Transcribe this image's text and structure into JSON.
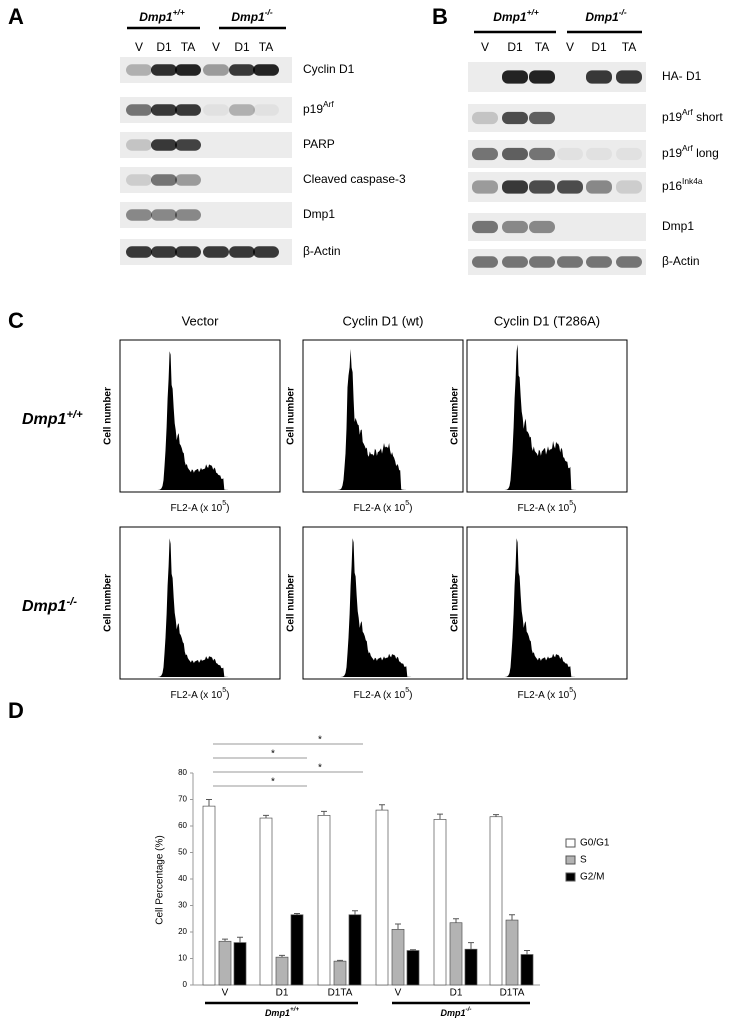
{
  "panel_a": {
    "label": "A",
    "groups": [
      [
        "Dmp1",
        "+/+"
      ],
      [
        "Dmp1",
        "-/-"
      ]
    ],
    "lanes": [
      "V",
      "D1",
      "TA",
      "V",
      "D1",
      "TA"
    ],
    "rows": [
      [
        "Cyclin D1"
      ],
      [
        "p19",
        "Arf"
      ],
      [
        "PARP"
      ],
      [
        "Cleaved caspase-3"
      ],
      [
        "Dmp1"
      ],
      [
        "β-Actin"
      ]
    ]
  },
  "panel_b": {
    "label": "B",
    "groups": [
      [
        "Dmp1",
        "+/+"
      ],
      [
        "Dmp1",
        "-/-"
      ]
    ],
    "lanes": [
      "V",
      "D1",
      "TA",
      "V",
      "D1",
      "TA"
    ],
    "rows": [
      [
        "HA- D1"
      ],
      [
        "p19",
        "Arf",
        " short"
      ],
      [
        "p19",
        "Arf",
        " long"
      ],
      [
        "p16",
        "Ink4a"
      ],
      [
        "Dmp1"
      ],
      [
        "β-Actin"
      ]
    ]
  },
  "panel_c": {
    "label": "C",
    "columns": [
      "Vector",
      "Cyclin D1 (wt)",
      "Cyclin D1 (T286A)"
    ],
    "rows": [
      [
        "Dmp1",
        "+/+"
      ],
      [
        "Dmp1",
        "-/-"
      ]
    ],
    "ylabel": "Cell number",
    "xlabel": [
      "FL2-A (x 10",
      "5",
      ")"
    ]
  },
  "panel_d": {
    "label": "D",
    "chart_data": {
      "type": "bar",
      "ylabel": "Cell Percentage (%)",
      "ylim": [
        0,
        80
      ],
      "yticks": [
        0,
        10,
        20,
        30,
        40,
        50,
        60,
        70,
        80
      ],
      "categories": [
        "V",
        "D1",
        "D1TA",
        "V",
        "D1",
        "D1TA"
      ],
      "groups": [
        [
          "Dmp1",
          "+/+"
        ],
        [
          "Dmp1",
          "-/-"
        ]
      ],
      "series": [
        {
          "name": "G0/G1",
          "color": "#ffffff",
          "values": [
            67.5,
            63,
            64,
            66,
            62.5,
            63.5
          ],
          "errors": [
            2.5,
            1,
            1.5,
            2,
            2,
            0.8
          ]
        },
        {
          "name": "S",
          "color": "#b3b3b3",
          "values": [
            16.5,
            10.5,
            9,
            21,
            23.5,
            24.5
          ],
          "errors": [
            0.8,
            0.7,
            0.3,
            2,
            1.5,
            2
          ]
        },
        {
          "name": "G2/M",
          "color": "#000000",
          "values": [
            16,
            26.5,
            26.5,
            13,
            13.5,
            11.5
          ],
          "errors": [
            2,
            0.5,
            1.5,
            0.3,
            2.5,
            1.5
          ]
        }
      ],
      "annotations": [
        "*",
        "*",
        "*",
        "*"
      ]
    }
  }
}
